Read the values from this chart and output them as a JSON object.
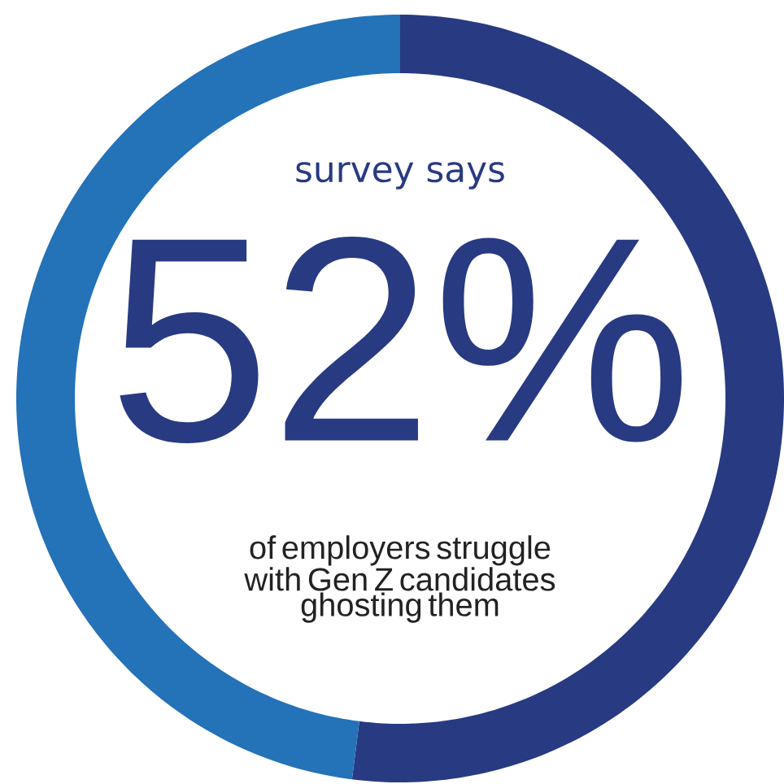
{
  "chart_data": {
    "type": "donut",
    "categories": [
      null,
      null
    ],
    "values": [
      52,
      48
    ],
    "colors": [
      "#283a82",
      "#2472b8"
    ],
    "annotations": [
      "survey says",
      "52%",
      "of employers struggle with Gen Z candidates ghosting them"
    ]
  }
}
